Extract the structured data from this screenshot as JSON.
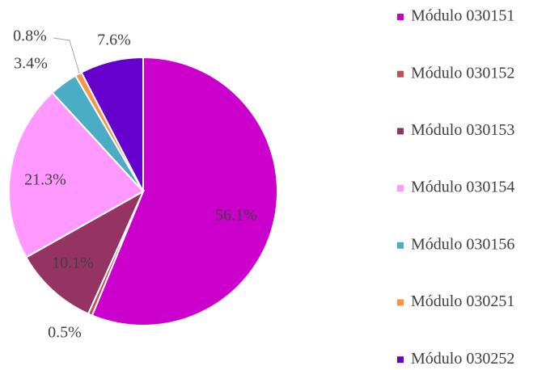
{
  "chart_data": {
    "type": "pie",
    "categories": [
      "Módulo 030151",
      "Módulo 030152",
      "Módulo 030153",
      "Módulo 030154",
      "Módulo 030156",
      "Módulo 030251",
      "Módulo 030252"
    ],
    "values": [
      56.1,
      0.5,
      10.1,
      21.3,
      3.4,
      0.8,
      7.6
    ],
    "value_labels": [
      "56.1%",
      "0.5%",
      "10.1%",
      "21.3%",
      "3.4%",
      "0.8%",
      "7.6%"
    ],
    "colors": [
      "#cc00cc",
      "#c0504d",
      "#953463",
      "#ff99ff",
      "#4bacc6",
      "#f79646",
      "#6600cc"
    ],
    "legend": "right"
  }
}
